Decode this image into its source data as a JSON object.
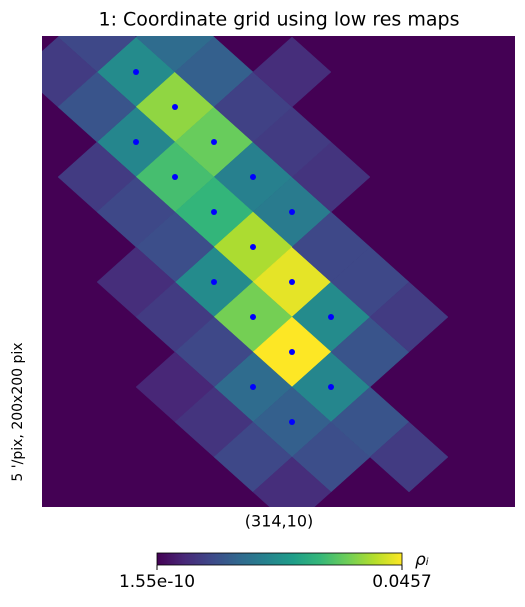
{
  "chart_data": {
    "type": "healpix-map",
    "title": "1: Coordinate grid using low res maps",
    "xlabel": "(314,10)",
    "ylabel": "5 '/pix,   200x200 pix",
    "background_value": 1.55e-10,
    "cells": [
      {
        "value": 0.022,
        "dot": true
      },
      {
        "value": 0.038,
        "dot": true
      },
      {
        "value": 0.021,
        "dot": true
      },
      {
        "value": 0.035,
        "dot": true
      },
      {
        "value": 0.032,
        "dot": true
      },
      {
        "value": 0.02,
        "dot": true
      },
      {
        "value": 0.03,
        "dot": true
      },
      {
        "value": 0.019,
        "dot": true
      },
      {
        "value": 0.04,
        "dot": true
      },
      {
        "value": 0.022,
        "dot": true
      },
      {
        "value": 0.044,
        "dot": true
      },
      {
        "value": 0.036,
        "dot": true
      },
      {
        "value": 0.022,
        "dot": true
      },
      {
        "value": 0.0457,
        "dot": true
      },
      {
        "value": 0.016,
        "dot": true
      },
      {
        "value": 0.021,
        "dot": true
      },
      {
        "value": 0.014,
        "dot": true
      },
      {
        "value": 0.01,
        "dot": false
      },
      {
        "value": 0.016,
        "dot": false
      },
      {
        "value": 0.014,
        "dot": false
      },
      {
        "value": 0.008,
        "dot": false
      },
      {
        "value": 0.012,
        "dot": false
      },
      {
        "value": 0.008,
        "dot": false
      },
      {
        "value": 0.01,
        "dot": false
      },
      {
        "value": 0.011,
        "dot": false
      },
      {
        "value": 0.006,
        "dot": false
      },
      {
        "value": 0.008,
        "dot": false
      },
      {
        "value": 0.01,
        "dot": false
      },
      {
        "value": 0.005,
        "dot": false
      },
      {
        "value": 0.007,
        "dot": false
      },
      {
        "value": 0.01,
        "dot": false
      },
      {
        "value": 0.011,
        "dot": false
      },
      {
        "value": 0.012,
        "dot": false
      },
      {
        "value": 0.012,
        "dot": false
      },
      {
        "value": 0.01,
        "dot": false
      },
      {
        "value": 0.01,
        "dot": false
      },
      {
        "value": 0.007,
        "dot": false
      },
      {
        "value": 0.008,
        "dot": false
      },
      {
        "value": 0.009,
        "dot": false
      },
      {
        "value": 0.006,
        "dot": false
      },
      {
        "value": 0.006,
        "dot": false
      },
      {
        "value": 0.008,
        "dot": false
      },
      {
        "value": 0.008,
        "dot": false
      }
    ],
    "colorbar": {
      "vmin": 1.55e-10,
      "vmax": 0.0457,
      "label": "ρᵢ",
      "ticks": [
        {
          "value": 1.55e-10,
          "label": "1.55e-10"
        },
        0.0457
      ]
    },
    "dot_color": "#0000ff"
  }
}
